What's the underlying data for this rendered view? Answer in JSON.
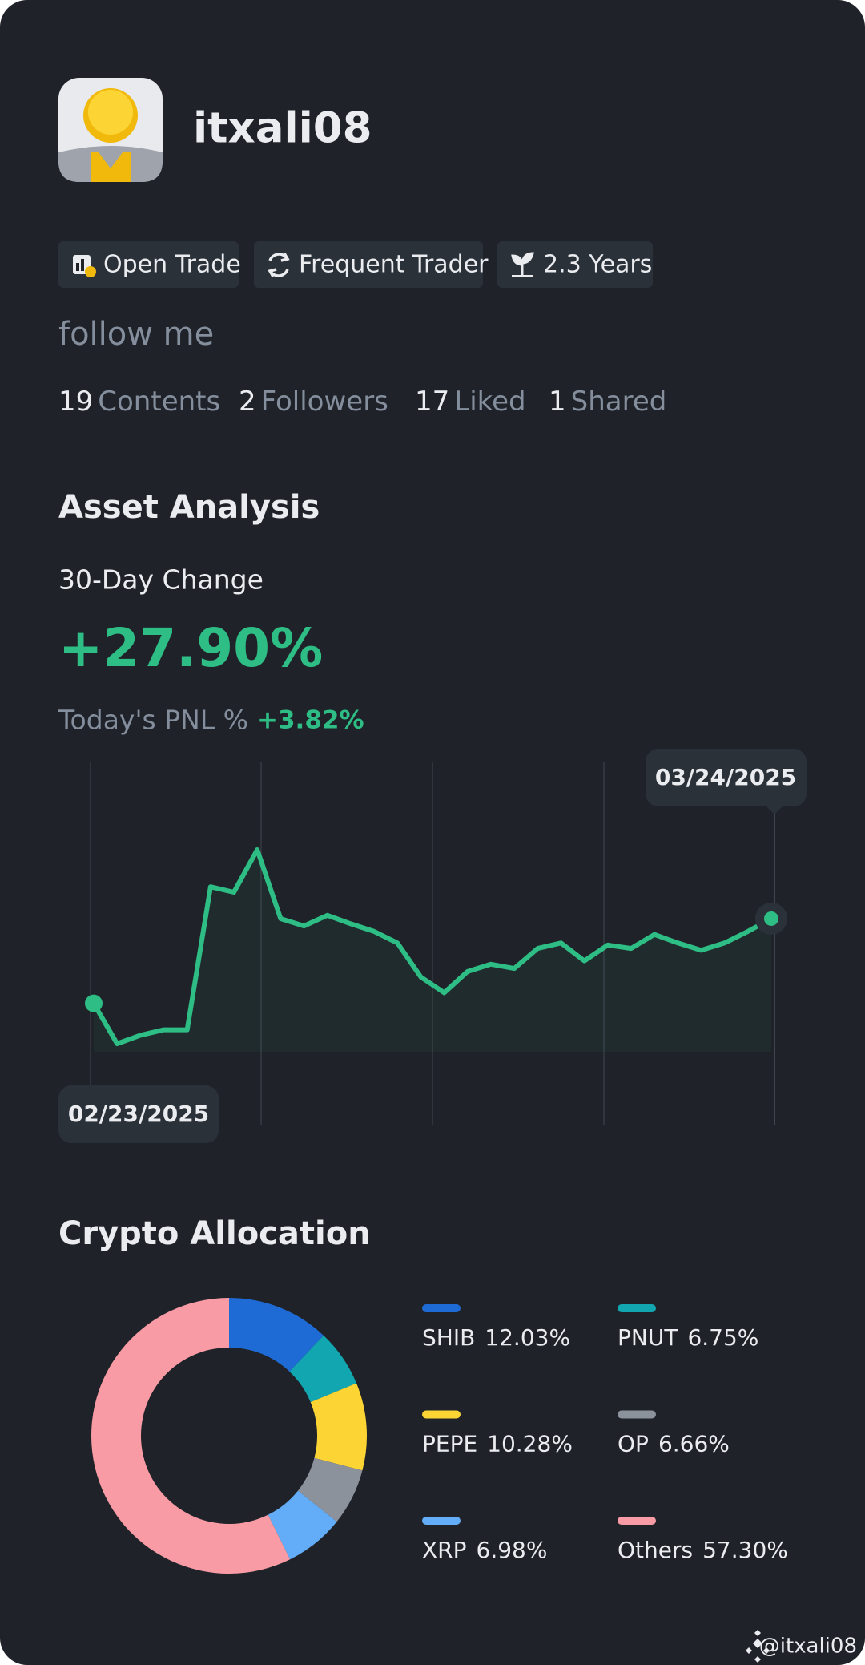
{
  "profile": {
    "username": "itxali08",
    "badges": [
      "Open Trade",
      "Frequent Trader",
      "2.3 Years"
    ],
    "bio": "follow me",
    "stats": [
      {
        "count": 19,
        "label": "Contents"
      },
      {
        "count": 2,
        "label": "Followers"
      },
      {
        "count": 17,
        "label": "Liked"
      },
      {
        "count": 1,
        "label": "Shared"
      }
    ]
  },
  "asset_analysis": {
    "title": "Asset Analysis",
    "change_label": "30-Day Change",
    "change_value": "+27.90%",
    "pnl_label": "Today's PNL %",
    "pnl_value": "+3.82%"
  },
  "allocation_title": "Crypto Allocation",
  "watermark": "@itxali08",
  "chart_data": [
    {
      "type": "line",
      "start_label": "02/23/2025",
      "end_label": "03/24/2025",
      "color": "#2ebd85",
      "values": [
        0,
        -13.3,
        -10.5,
        -8.7,
        -8.7,
        38.4,
        36.6,
        50.6,
        27.9,
        25.5,
        29.0,
        26.2,
        23.7,
        19.9,
        8.7,
        3.5,
        10.5,
        12.9,
        11.5,
        18.1,
        19.9,
        14.0,
        19.2,
        18.1,
        22.7,
        19.9,
        17.5,
        19.9,
        23.7,
        27.9
      ]
    },
    {
      "type": "pie",
      "series": [
        {
          "name": "SHIB",
          "color": "#1f6bd6",
          "values": [
            12.03
          ],
          "value_labels": [
            "12.03%"
          ]
        },
        {
          "name": "PNUT",
          "color": "#12a6b0",
          "values": [
            6.75
          ],
          "value_labels": [
            "6.75%"
          ]
        },
        {
          "name": "PEPE",
          "color": "#fcd535",
          "values": [
            10.28
          ],
          "value_labels": [
            "10.28%"
          ]
        },
        {
          "name": "OP",
          "color": "#8c929c",
          "values": [
            6.66
          ],
          "value_labels": [
            "6.66%"
          ]
        },
        {
          "name": "XRP",
          "color": "#63acf7",
          "values": [
            6.98
          ],
          "value_labels": [
            "6.98%"
          ]
        },
        {
          "name": "Others",
          "color": "#f89ba4",
          "values": [
            57.3
          ],
          "value_labels": [
            "57.30%"
          ]
        }
      ]
    }
  ]
}
